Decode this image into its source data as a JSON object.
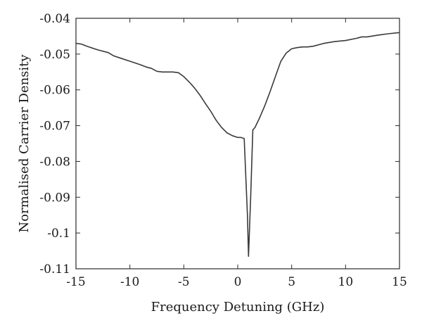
{
  "chart_data": {
    "type": "line",
    "title": "",
    "xlabel": "Frequency Detuning (GHz)",
    "ylabel": "Normalised Carrier Density",
    "xlim": [
      -15,
      15
    ],
    "ylim": [
      -0.11,
      -0.04
    ],
    "xticks": [
      -15,
      -10,
      -5,
      0,
      5,
      10,
      15
    ],
    "xtick_labels": [
      "-15",
      "-10",
      "-5",
      "0",
      "5",
      "10",
      "15"
    ],
    "yticks": [
      -0.11,
      -0.1,
      -0.09,
      -0.08,
      -0.07,
      -0.06,
      -0.05,
      -0.04
    ],
    "ytick_labels": [
      "-0.11",
      "-0.1",
      "-0.09",
      "-0.08",
      "-0.07",
      "-0.06",
      "-0.05",
      "-0.04"
    ],
    "grid": false,
    "line_color": "#3a3a3a",
    "series": [
      {
        "x": [
          -15,
          -14.5,
          -14,
          -13,
          -12,
          -11.5,
          -11,
          -10,
          -9,
          -8.5,
          -8,
          -7.5,
          -7,
          -6.5,
          -6,
          -5.5,
          -5,
          -4.5,
          -4,
          -3.5,
          -3,
          -2.5,
          -2,
          -1.5,
          -1,
          -0.5,
          0,
          0.3,
          0.6,
          0.9,
          1.0,
          1.2,
          1.4,
          1.6,
          2,
          2.5,
          3,
          3.5,
          4,
          4.5,
          5,
          5.5,
          6,
          6.5,
          7,
          8,
          9,
          10,
          11,
          11.5,
          12,
          13,
          14,
          15
        ],
        "y": [
          -0.047,
          -0.0472,
          -0.0478,
          -0.0488,
          -0.0496,
          -0.0505,
          -0.051,
          -0.052,
          -0.053,
          -0.0536,
          -0.054,
          -0.0548,
          -0.055,
          -0.055,
          -0.055,
          -0.0552,
          -0.0563,
          -0.0578,
          -0.0595,
          -0.0615,
          -0.0638,
          -0.066,
          -0.0685,
          -0.0705,
          -0.072,
          -0.0728,
          -0.0733,
          -0.0733,
          -0.0736,
          -0.095,
          -0.1065,
          -0.09,
          -0.0712,
          -0.0705,
          -0.068,
          -0.0645,
          -0.0605,
          -0.0562,
          -0.052,
          -0.0497,
          -0.0485,
          -0.0482,
          -0.048,
          -0.048,
          -0.0478,
          -0.047,
          -0.0465,
          -0.0462,
          -0.0456,
          -0.0452,
          -0.0452,
          -0.0447,
          -0.0443,
          -0.044
        ]
      }
    ]
  }
}
